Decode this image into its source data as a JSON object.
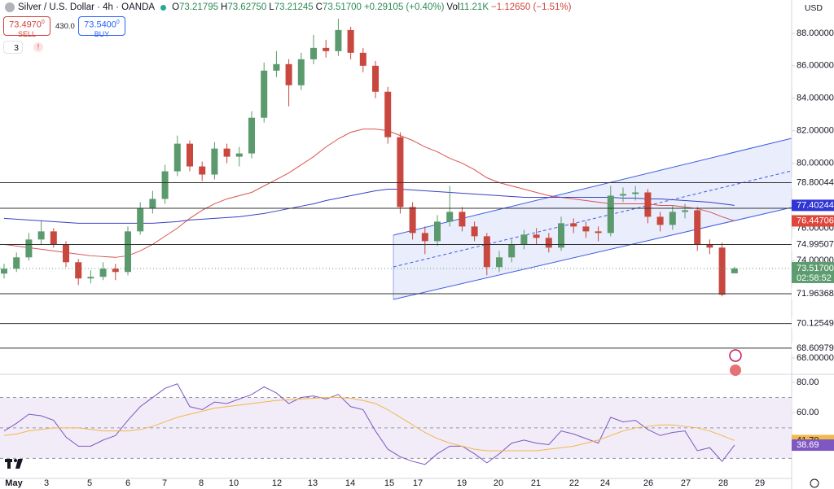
{
  "header": {
    "title": "Silver / U.S. Dollar · 4h · OANDA",
    "legend": [
      {
        "k": "O",
        "v": "73.21795"
      },
      {
        "k": "H",
        "v": "73.62750"
      },
      {
        "k": "L",
        "v": "73.21245"
      },
      {
        "k": "C",
        "v": "73.51700"
      },
      {
        "v": "+0.29105 (+0.40%)"
      },
      {
        "k": "Vol",
        "v": "11.21K"
      },
      {
        "v": "−1.12650 (−1.51%)"
      }
    ],
    "sell_price": "73.4970",
    "sell_sup": "0",
    "sell": "SELL",
    "spread": "430.0",
    "buy_price": "73.5400",
    "buy_sup": "0",
    "buy": "BUY",
    "indicators": "3",
    "currency": "USD"
  },
  "time_axis": [
    "May",
    "3",
    "5",
    "6",
    "7",
    "8",
    "10",
    "12",
    "13",
    "14",
    "15",
    "17",
    "19",
    "20",
    "21",
    "22",
    "24",
    "26",
    "27",
    "28",
    "29"
  ],
  "chart_data": [
    {
      "type": "candlestick",
      "up_color": "#5a9a6c",
      "down_color": "#c8483f",
      "ylim": [
        67.1,
        90.05
      ],
      "yticks": [
        {
          "value": 88,
          "label": "88.00000"
        },
        {
          "value": 86,
          "label": "86.00000"
        },
        {
          "value": 84,
          "label": "84.00000"
        },
        {
          "value": 82,
          "label": "82.00000"
        },
        {
          "value": 80,
          "label": "80.00000"
        },
        {
          "value": 76,
          "label": "76.00000"
        },
        {
          "value": 74,
          "label": "74.00000"
        },
        {
          "value": 68,
          "label": "68.00000"
        }
      ],
      "candles": [
        [
          73.2,
          73.8,
          72.9,
          73.5
        ],
        [
          73.5,
          74.5,
          73.3,
          74.2
        ],
        [
          74.2,
          75.7,
          74.0,
          75.3
        ],
        [
          75.3,
          76.5,
          75.0,
          75.8
        ],
        [
          75.8,
          76.0,
          74.8,
          75.0
        ],
        [
          75.0,
          75.2,
          73.6,
          73.9
        ],
        [
          73.9,
          74.1,
          72.5,
          72.9
        ],
        [
          72.9,
          73.4,
          72.6,
          73.0
        ],
        [
          73.0,
          73.9,
          72.8,
          73.5
        ],
        [
          73.5,
          73.8,
          72.8,
          73.3
        ],
        [
          73.3,
          76.1,
          73.1,
          75.8
        ],
        [
          75.8,
          77.6,
          75.6,
          77.2
        ],
        [
          77.2,
          78.3,
          76.9,
          77.8
        ],
        [
          77.8,
          79.9,
          77.5,
          79.5
        ],
        [
          79.5,
          81.7,
          79.2,
          81.2
        ],
        [
          81.2,
          81.4,
          79.5,
          79.8
        ],
        [
          79.8,
          80.1,
          78.9,
          79.3
        ],
        [
          79.3,
          81.3,
          79.0,
          80.9
        ],
        [
          80.9,
          81.2,
          80.0,
          80.4
        ],
        [
          80.4,
          81.0,
          79.8,
          80.6
        ],
        [
          80.6,
          83.2,
          80.3,
          82.8
        ],
        [
          82.8,
          86.2,
          82.5,
          85.7
        ],
        [
          85.7,
          86.9,
          85.3,
          86.1
        ],
        [
          86.1,
          86.4,
          83.5,
          84.8
        ],
        [
          84.8,
          86.8,
          84.5,
          86.4
        ],
        [
          86.4,
          87.9,
          86.1,
          87.1
        ],
        [
          87.1,
          87.6,
          86.5,
          86.9
        ],
        [
          86.9,
          88.9,
          86.6,
          88.2
        ],
        [
          88.2,
          88.4,
          86.4,
          86.8
        ],
        [
          86.8,
          87.1,
          85.6,
          86.0
        ],
        [
          86.0,
          86.3,
          84.0,
          84.4
        ],
        [
          84.4,
          84.7,
          81.2,
          81.6
        ],
        [
          81.6,
          81.9,
          76.9,
          77.3
        ],
        [
          77.3,
          77.6,
          75.3,
          75.7
        ],
        [
          75.7,
          76.1,
          74.4,
          75.2
        ],
        [
          75.2,
          76.8,
          74.9,
          76.4
        ],
        [
          76.4,
          78.6,
          76.1,
          77.0
        ],
        [
          77.0,
          77.3,
          75.8,
          76.1
        ],
        [
          76.1,
          76.4,
          75.2,
          75.5
        ],
        [
          75.5,
          75.7,
          73.1,
          73.6
        ],
        [
          73.6,
          74.6,
          73.3,
          74.2
        ],
        [
          74.2,
          75.3,
          73.9,
          75.0
        ],
        [
          75.0,
          75.9,
          74.7,
          75.6
        ],
        [
          75.6,
          76.0,
          75.0,
          75.4
        ],
        [
          75.4,
          75.7,
          74.5,
          74.8
        ],
        [
          74.8,
          76.7,
          74.6,
          76.3
        ],
        [
          76.3,
          76.6,
          75.7,
          76.1
        ],
        [
          76.1,
          76.4,
          75.4,
          75.8
        ],
        [
          75.8,
          76.1,
          75.2,
          75.7
        ],
        [
          75.7,
          78.6,
          75.5,
          78.0
        ],
        [
          78.0,
          78.5,
          77.6,
          78.1
        ],
        [
          78.1,
          78.6,
          77.7,
          78.2
        ],
        [
          78.2,
          78.4,
          76.3,
          76.7
        ],
        [
          76.7,
          77.0,
          75.8,
          76.2
        ],
        [
          76.2,
          77.4,
          75.9,
          77.0
        ],
        [
          77.0,
          77.5,
          76.6,
          77.1
        ],
        [
          77.1,
          77.3,
          74.6,
          75.0
        ],
        [
          75.0,
          75.3,
          74.4,
          74.8
        ],
        [
          74.8,
          75.1,
          71.8,
          71.9
        ],
        [
          73.21795,
          73.6275,
          73.21245,
          73.517
        ]
      ],
      "series": [
        {
          "color": "#d9534f",
          "values": [
            75.0,
            74.9,
            74.8,
            74.7,
            74.6,
            74.5,
            74.4,
            74.3,
            74.25,
            74.2,
            74.3,
            74.6,
            75.0,
            75.5,
            76.0,
            76.6,
            77.1,
            77.5,
            77.8,
            78.0,
            78.2,
            78.6,
            79.0,
            79.4,
            79.9,
            80.4,
            81.0,
            81.5,
            81.9,
            82.1,
            82.1,
            82.0,
            81.7,
            81.4,
            81.0,
            80.7,
            80.3,
            80.0,
            79.6,
            79.1,
            78.8,
            78.6,
            78.4,
            78.2,
            78.0,
            77.9,
            77.8,
            77.7,
            77.6,
            77.5,
            77.5,
            77.5,
            77.5,
            77.4,
            77.4,
            77.3,
            77.2,
            77.0,
            76.7,
            76.44706
          ]
        },
        {
          "color": "#3a3fc4",
          "values": [
            76.6,
            76.55,
            76.5,
            76.45,
            76.4,
            76.35,
            76.3,
            76.3,
            76.3,
            76.3,
            76.3,
            76.3,
            76.3,
            76.35,
            76.4,
            76.5,
            76.55,
            76.6,
            76.65,
            76.7,
            76.8,
            76.9,
            77.05,
            77.2,
            77.35,
            77.5,
            77.7,
            77.85,
            78.0,
            78.15,
            78.3,
            78.4,
            78.4,
            78.35,
            78.3,
            78.25,
            78.2,
            78.15,
            78.1,
            78.05,
            78.0,
            77.95,
            77.9,
            77.9,
            77.9,
            77.9,
            77.9,
            77.9,
            77.9,
            77.9,
            77.85,
            77.85,
            77.8,
            77.8,
            77.75,
            77.7,
            77.65,
            77.6,
            77.5,
            77.40244
          ]
        }
      ],
      "levels": [
        78.80044,
        77.22025,
        74.99507,
        71.96368,
        70.12549,
        68.60979
      ],
      "tags": [
        {
          "value": 77.40244,
          "color": "#2f35d4"
        },
        {
          "value": 76.44706,
          "color": "#e0453c"
        },
        {
          "value": 73.517,
          "label": "73.51700",
          "color": "#5d9c70"
        }
      ],
      "countdown": "02:58:52"
    },
    {
      "type": "line",
      "ylim": [
        16.8,
        84.2
      ],
      "yticks": [
        {
          "value": 80,
          "label": "80.00"
        },
        {
          "value": 60,
          "label": "60.00"
        }
      ],
      "band": [
        30,
        70
      ],
      "levels": [
        70,
        50,
        30
      ],
      "series": [
        {
          "color": "#7e57c2",
          "values": [
            48,
            53,
            59,
            58,
            55,
            44,
            38,
            38,
            42,
            45,
            55,
            64,
            70,
            76,
            79,
            64,
            62,
            67,
            66,
            69,
            72,
            77,
            73,
            66,
            70,
            71,
            69,
            72,
            64,
            62,
            48,
            36,
            31,
            28,
            26,
            33,
            38,
            38,
            33,
            27,
            33,
            40,
            42,
            40,
            39,
            48,
            46,
            43,
            40,
            57,
            54,
            55,
            49,
            45,
            47,
            48,
            35,
            37,
            28,
            38.69
          ]
        },
        {
          "color": "#f2b84b",
          "values": [
            45,
            46,
            48,
            49,
            50,
            50,
            50,
            49,
            48,
            48,
            48,
            49,
            51,
            54,
            57,
            59,
            61,
            63,
            64,
            65,
            66,
            67,
            68,
            68.5,
            69,
            69.5,
            70,
            70,
            69.5,
            68,
            66,
            62,
            57,
            52,
            47,
            43,
            40,
            38,
            36,
            35,
            35,
            35,
            35,
            35,
            36,
            37,
            38,
            40,
            42,
            45,
            48,
            50,
            51,
            52,
            52,
            51,
            50,
            48,
            45,
            41.7
          ]
        }
      ],
      "tags": [
        {
          "value": 41.7,
          "label": "41.70",
          "color": "#f2b84b"
        },
        {
          "value": 38.69,
          "label": "38.69",
          "color": "#7e57c2"
        }
      ]
    }
  ]
}
